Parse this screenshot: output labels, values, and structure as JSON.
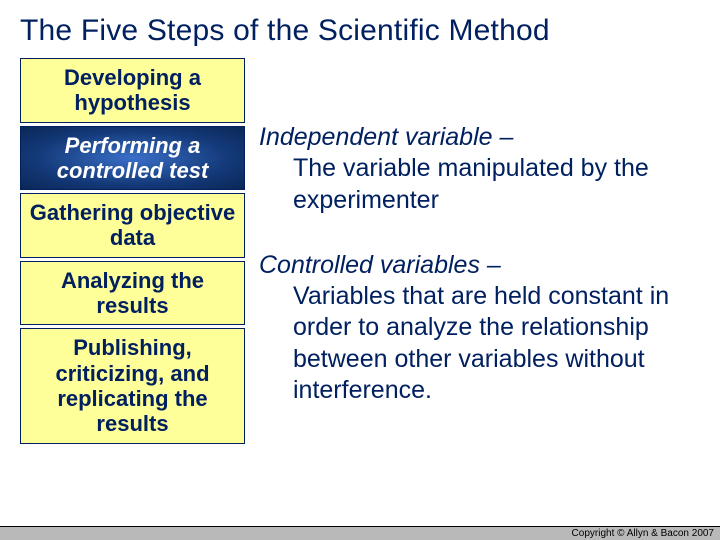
{
  "title": "The Five Steps of the Scientific Method",
  "steps": [
    {
      "label": "Developing a hypothesis",
      "active": false
    },
    {
      "label": "Performing a controlled test",
      "active": true
    },
    {
      "label": "Gathering objective data",
      "active": false
    },
    {
      "label": "Analyzing the results",
      "active": false
    },
    {
      "label": "Publishing, criticizing, and replicating the results",
      "active": false
    }
  ],
  "definitions": [
    {
      "term": "Independent variable –",
      "body": "The variable manipulated by the experimenter"
    },
    {
      "term": "Controlled variables –",
      "body": "Variables that are held constant in order to analyze the relationship between other variables without interference."
    }
  ],
  "footer": "Copyright © Allyn & Bacon 2007",
  "colors": {
    "title_color": "#002060",
    "box_bg": "#ffff99",
    "box_border": "#002060",
    "active_gradient_inner": "#3a6fc8",
    "active_gradient_outer": "#0a2656",
    "footer_bg": "#b9b9b9"
  }
}
